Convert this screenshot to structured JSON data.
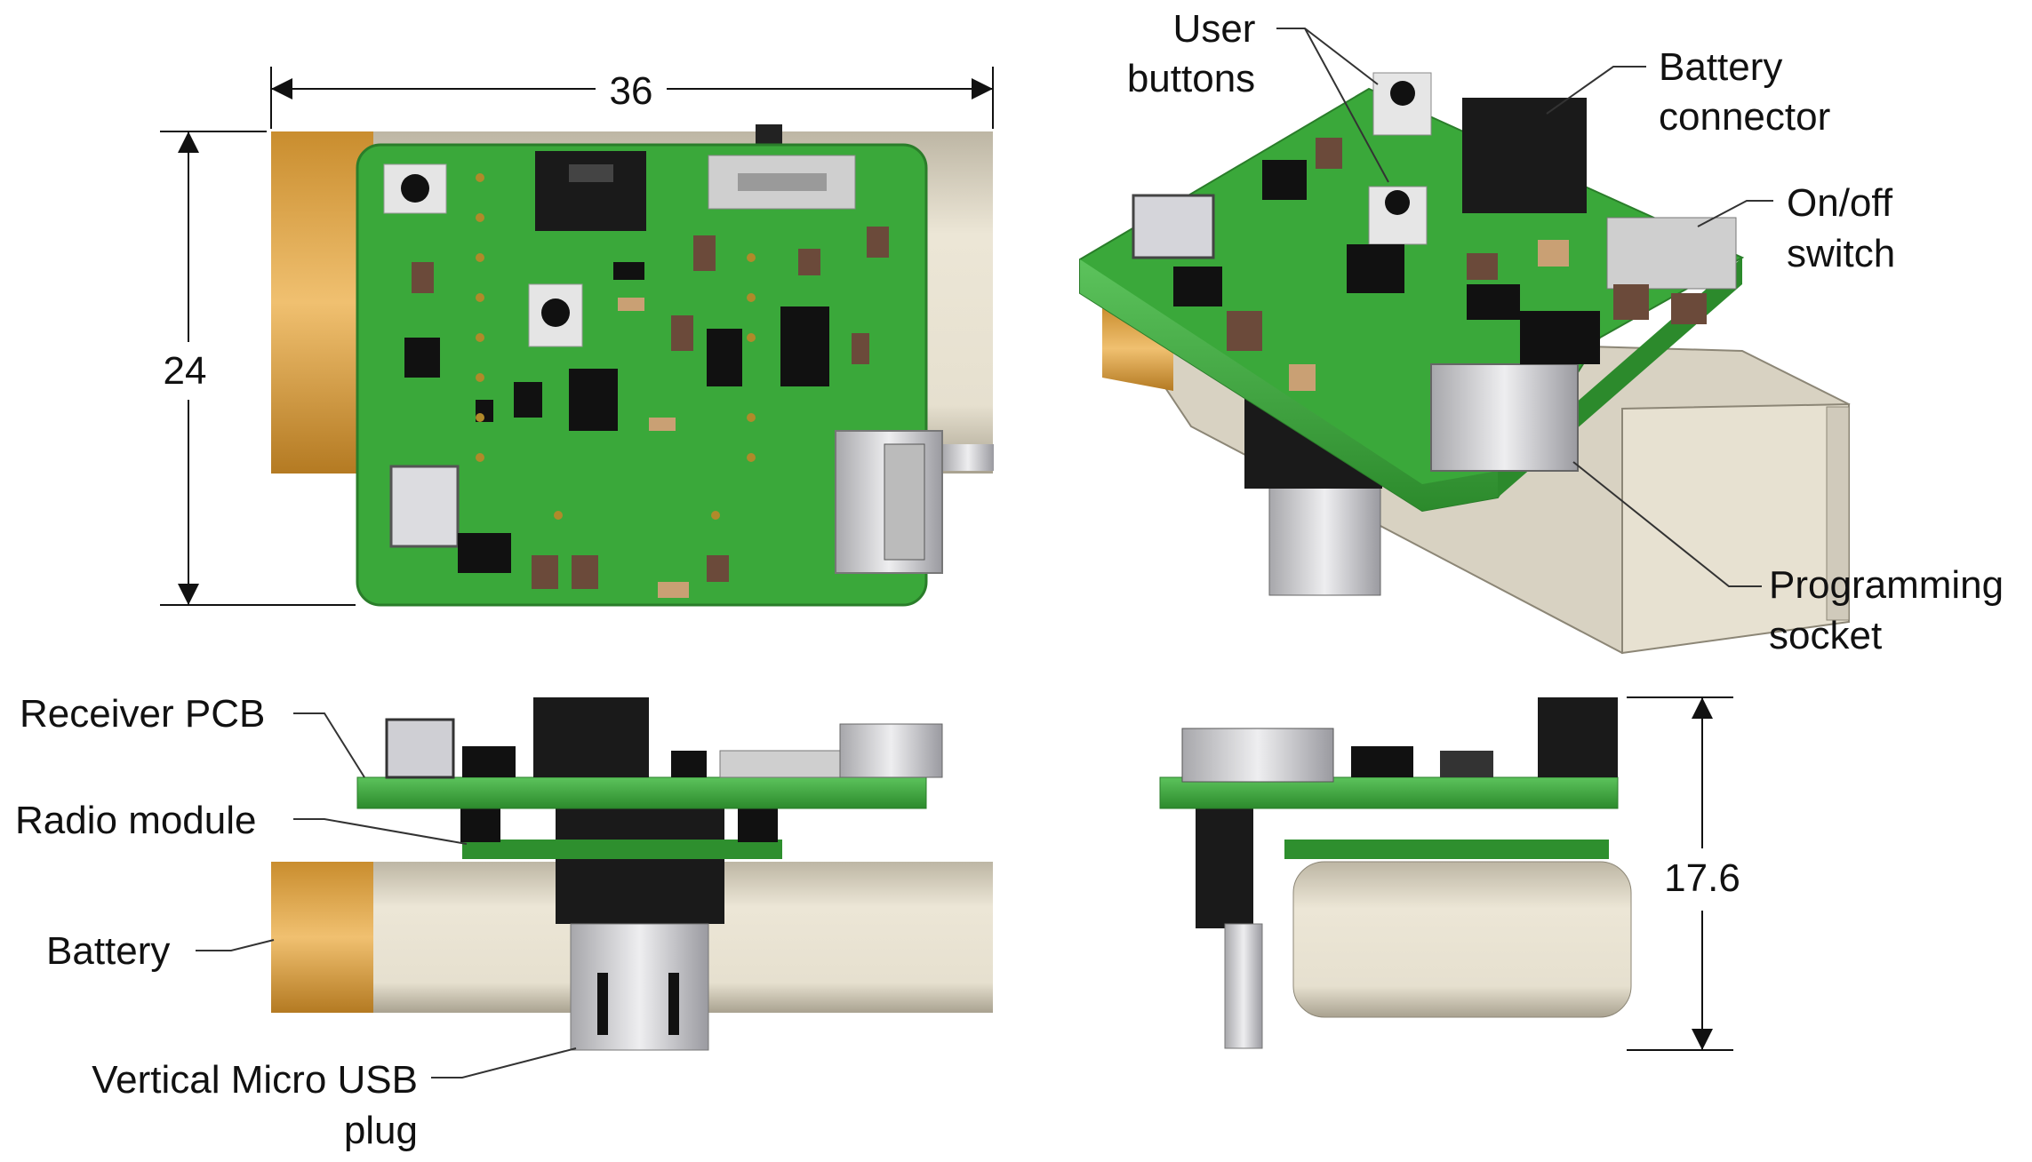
{
  "dimensions": {
    "width": "36",
    "height": "24",
    "depth": "17.6"
  },
  "labels": {
    "user_buttons_line1": "User",
    "user_buttons_line2": "buttons",
    "battery_connector_line1": "Battery",
    "battery_connector_line2": "connector",
    "onoff_line1": "On/off",
    "onoff_line2": "switch",
    "programming_line1": "Programming",
    "programming_line2": "socket",
    "receiver_pcb": "Receiver PCB",
    "radio_module": "Radio module",
    "battery": "Battery",
    "usb_line1": "Vertical Micro USB",
    "usb_line2": "plug"
  },
  "colors": {
    "pcb_green": "#3aa83a",
    "pcb_dark": "#2a7d2a",
    "battery_gold": "#e0a94c",
    "battery_body": "#e3ddcd",
    "component_black": "#1a1a1a",
    "metal": "#c9c9cc"
  }
}
